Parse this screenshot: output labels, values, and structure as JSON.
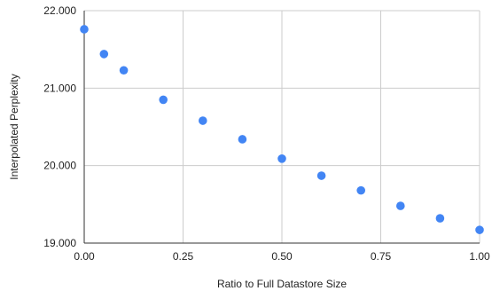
{
  "chart_data": {
    "type": "scatter",
    "title": "",
    "xlabel": "Ratio to Full Datastore Size",
    "ylabel": "Interpolated Perplexity",
    "xlim": [
      0,
      1
    ],
    "ylim": [
      19,
      22
    ],
    "x_ticks": [
      "0.00",
      "0.25",
      "0.50",
      "0.75",
      "1.00"
    ],
    "y_ticks": [
      "22.000",
      "21.000",
      "20.000",
      "19.000"
    ],
    "grid": true,
    "legend": "none",
    "series": [
      {
        "color": "#4285F4",
        "points": [
          {
            "x": 0.0,
            "y": 21.76
          },
          {
            "x": 0.05,
            "y": 21.44
          },
          {
            "x": 0.1,
            "y": 21.23
          },
          {
            "x": 0.2,
            "y": 20.85
          },
          {
            "x": 0.3,
            "y": 20.58
          },
          {
            "x": 0.4,
            "y": 20.34
          },
          {
            "x": 0.5,
            "y": 20.09
          },
          {
            "x": 0.6,
            "y": 19.87
          },
          {
            "x": 0.7,
            "y": 19.68
          },
          {
            "x": 0.8,
            "y": 19.48
          },
          {
            "x": 0.9,
            "y": 19.32
          },
          {
            "x": 1.0,
            "y": 19.17
          }
        ]
      }
    ]
  }
}
